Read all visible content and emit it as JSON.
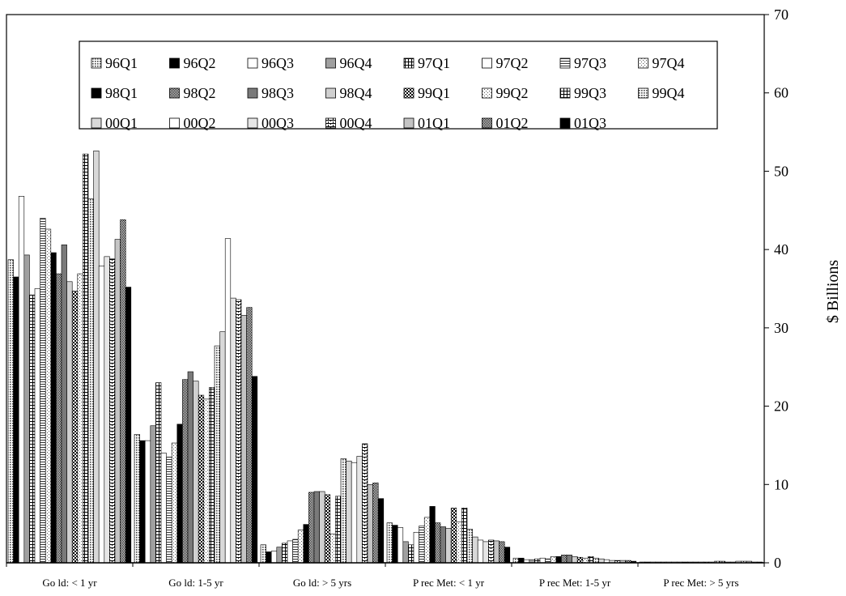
{
  "chart_data": {
    "type": "bar",
    "categories": [
      "Go ld: < 1 yr",
      "Go ld: 1-5 yr",
      "Go ld: > 5 yrs",
      "P rec  Met: < 1 yr",
      "P rec  Met: 1-5 yr",
      "P rec  Met: > 5 yrs"
    ],
    "ylabel": "$ Billions",
    "ylim": [
      0,
      70
    ],
    "yticks": [
      0,
      10,
      20,
      30,
      40,
      50,
      60,
      70
    ],
    "y_axis_side": "right",
    "legend_placement": "top",
    "series": [
      {
        "name": "96Q1",
        "values": [
          38.7,
          16.4,
          2.3,
          5.1,
          0.6,
          0.1
        ]
      },
      {
        "name": "96Q2",
        "values": [
          36.5,
          15.6,
          1.4,
          4.8,
          0.6,
          0.1
        ]
      },
      {
        "name": "96Q3",
        "values": [
          46.8,
          15.6,
          1.5,
          4.5,
          0.4,
          0.1
        ]
      },
      {
        "name": "96Q4",
        "values": [
          39.3,
          17.5,
          2.0,
          2.7,
          0.4,
          0.1
        ]
      },
      {
        "name": "97Q1",
        "values": [
          34.2,
          23.0,
          2.5,
          2.3,
          0.5,
          0.1
        ]
      },
      {
        "name": "97Q2",
        "values": [
          35.0,
          14.0,
          2.8,
          3.9,
          0.6,
          0.1
        ]
      },
      {
        "name": "97Q3",
        "values": [
          44.0,
          13.5,
          3.0,
          4.7,
          0.5,
          0.1
        ]
      },
      {
        "name": "97Q4",
        "values": [
          42.6,
          15.3,
          4.2,
          5.8,
          0.8,
          0.1
        ]
      },
      {
        "name": "98Q1",
        "values": [
          39.6,
          17.7,
          4.9,
          7.2,
          0.8,
          0.1
        ]
      },
      {
        "name": "98Q2",
        "values": [
          36.9,
          23.4,
          9.0,
          5.1,
          1.0,
          0.1
        ]
      },
      {
        "name": "98Q3",
        "values": [
          40.6,
          24.4,
          9.1,
          4.6,
          1.0,
          0.1
        ]
      },
      {
        "name": "98Q4",
        "values": [
          35.9,
          23.2,
          9.1,
          4.4,
          0.8,
          0.1
        ]
      },
      {
        "name": "99Q1",
        "values": [
          34.7,
          21.4,
          8.7,
          7.0,
          0.7,
          0.1
        ]
      },
      {
        "name": "99Q2",
        "values": [
          36.9,
          20.9,
          3.7,
          5.2,
          0.6,
          0.1
        ]
      },
      {
        "name": "99Q3",
        "values": [
          52.2,
          22.4,
          8.5,
          7.0,
          0.8,
          0.2
        ]
      },
      {
        "name": "99Q4",
        "values": [
          46.5,
          27.7,
          13.3,
          4.3,
          0.6,
          0.2
        ]
      },
      {
        "name": "00Q1",
        "values": [
          52.6,
          29.5,
          13.0,
          3.3,
          0.5,
          0.1
        ]
      },
      {
        "name": "00Q2",
        "values": [
          37.9,
          41.4,
          12.8,
          2.9,
          0.4,
          0.1
        ]
      },
      {
        "name": "00Q3",
        "values": [
          39.1,
          33.8,
          13.6,
          2.7,
          0.3,
          0.2
        ]
      },
      {
        "name": "00Q4",
        "values": [
          38.8,
          33.6,
          15.2,
          2.9,
          0.3,
          0.2
        ]
      },
      {
        "name": "01Q1",
        "values": [
          41.3,
          31.6,
          10.0,
          2.8,
          0.3,
          0.2
        ]
      },
      {
        "name": "01Q2",
        "values": [
          43.8,
          32.6,
          10.2,
          2.7,
          0.3,
          0.1
        ]
      },
      {
        "name": "01Q3",
        "values": [
          35.2,
          23.8,
          8.2,
          2.0,
          0.2,
          0.1
        ]
      }
    ]
  }
}
